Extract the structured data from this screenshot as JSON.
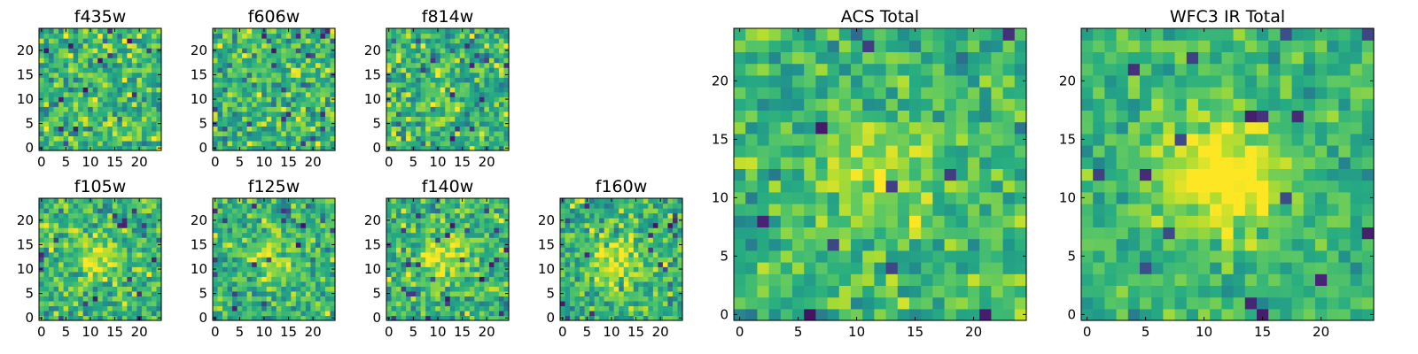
{
  "chart_data": [
    {
      "type": "heatmap",
      "title": "f435w",
      "xlim": [
        0,
        25
      ],
      "ylim": [
        0,
        25
      ],
      "xticks": [
        0,
        5,
        10,
        15,
        20
      ],
      "yticks": [
        0,
        5,
        10,
        15,
        20
      ],
      "blob": [
        0,
        0
      ],
      "noise": 0.3,
      "seed": 11
    },
    {
      "type": "heatmap",
      "title": "f606w",
      "xlim": [
        0,
        25
      ],
      "ylim": [
        0,
        25
      ],
      "xticks": [
        0,
        5,
        10,
        15,
        20
      ],
      "yticks": [
        0,
        5,
        10,
        15,
        20
      ],
      "blob": [
        0.05,
        11
      ],
      "noise": 0.3,
      "seed": 23
    },
    {
      "type": "heatmap",
      "title": "f814w",
      "xlim": [
        0,
        25
      ],
      "ylim": [
        0,
        25
      ],
      "xticks": [
        0,
        5,
        10,
        15,
        20
      ],
      "yticks": [
        0,
        5,
        10,
        15,
        20
      ],
      "blob": [
        0.08,
        11
      ],
      "noise": 0.3,
      "seed": 37
    },
    {
      "type": "heatmap",
      "title": "f105w",
      "xlim": [
        0,
        25
      ],
      "ylim": [
        0,
        25
      ],
      "xticks": [
        0,
        5,
        10,
        15,
        20
      ],
      "yticks": [
        0,
        5,
        10,
        15,
        20
      ],
      "blob": [
        0.25,
        12
      ],
      "noise": 0.26,
      "seed": 41
    },
    {
      "type": "heatmap",
      "title": "f125w",
      "xlim": [
        0,
        25
      ],
      "ylim": [
        0,
        25
      ],
      "xticks": [
        0,
        5,
        10,
        15,
        20
      ],
      "yticks": [
        0,
        5,
        10,
        15,
        20
      ],
      "blob": [
        0.2,
        12
      ],
      "noise": 0.26,
      "seed": 53
    },
    {
      "type": "heatmap",
      "title": "f140w",
      "xlim": [
        0,
        25
      ],
      "ylim": [
        0,
        25
      ],
      "xticks": [
        0,
        5,
        10,
        15,
        20
      ],
      "yticks": [
        0,
        5,
        10,
        15,
        20
      ],
      "blob": [
        0.3,
        12
      ],
      "noise": 0.26,
      "seed": 67
    },
    {
      "type": "heatmap",
      "title": "f160w",
      "xlim": [
        0,
        25
      ],
      "ylim": [
        0,
        25
      ],
      "xticks": [
        0,
        5,
        10,
        15,
        20
      ],
      "yticks": [
        0,
        5,
        10,
        15,
        20
      ],
      "blob": [
        0.3,
        12
      ],
      "noise": 0.26,
      "seed": 79
    },
    {
      "type": "heatmap",
      "title": "ACS Total",
      "xlim": [
        0,
        25
      ],
      "ylim": [
        0,
        25
      ],
      "xticks": [
        0,
        5,
        10,
        15,
        20
      ],
      "yticks": [
        0,
        5,
        10,
        15,
        20
      ],
      "blob": [
        0.22,
        12
      ],
      "noise": 0.22,
      "seed": 97
    },
    {
      "type": "heatmap",
      "title": "WFC3 IR Total",
      "xlim": [
        0,
        25
      ],
      "ylim": [
        0,
        25
      ],
      "xticks": [
        0,
        5,
        10,
        15,
        20
      ],
      "yticks": [
        0,
        5,
        10,
        15,
        20
      ],
      "blob": [
        0.45,
        12
      ],
      "noise": 0.18,
      "seed": 113
    }
  ]
}
